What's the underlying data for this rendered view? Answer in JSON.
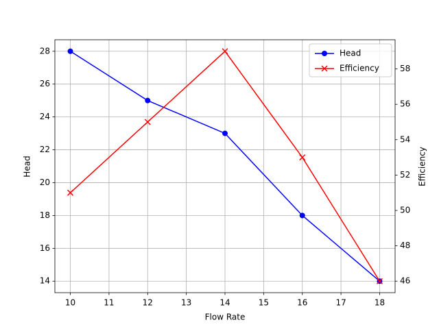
{
  "chart_data": {
    "type": "line",
    "x": [
      10,
      12,
      14,
      16,
      18
    ],
    "xlabel": "Flow Rate",
    "ylabel": "Head",
    "y2label": "Efficiency",
    "series": [
      {
        "name": "Head",
        "color": "#0000ff",
        "marker": "o",
        "axis": "y",
        "values": [
          28,
          25,
          23,
          18,
          14
        ]
      },
      {
        "name": "Efficiency",
        "color": "#ff0000",
        "marker": "x",
        "axis": "y2",
        "values": [
          51,
          55,
          59,
          53,
          46
        ]
      }
    ],
    "xlim": [
      9.6,
      18.4
    ],
    "xticks": [
      10,
      11,
      12,
      13,
      14,
      15,
      16,
      17,
      18
    ],
    "ylim": [
      13.3,
      28.7
    ],
    "yticks": [
      14,
      16,
      18,
      20,
      22,
      24,
      26,
      28
    ],
    "y2lim": [
      45.35,
      59.65
    ],
    "y2ticks": [
      46,
      48,
      50,
      52,
      54,
      56,
      58
    ],
    "grid": true,
    "legend": "upper right"
  }
}
